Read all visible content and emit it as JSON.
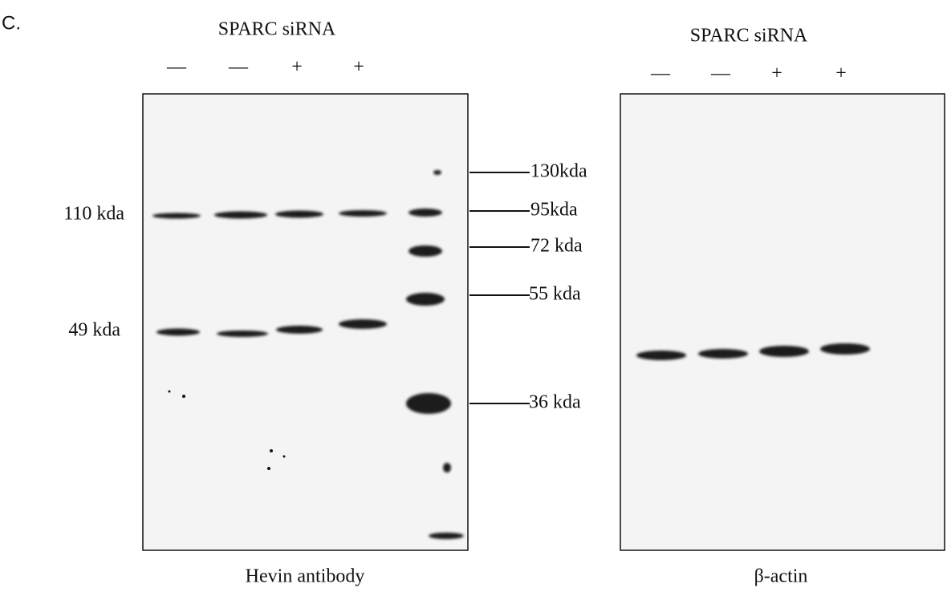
{
  "panel_label": "C.",
  "left_blot": {
    "title": "SPARC siRNA",
    "lanes": [
      "—",
      "—",
      "+",
      "+"
    ],
    "band_labels": [
      "110 kda",
      "49 kda"
    ],
    "marker_labels": [
      "130kda",
      "95kda",
      "72 kda",
      "55 kda",
      "36 kda"
    ],
    "caption": "Hevin antibody"
  },
  "right_blot": {
    "title": "SPARC siRNA",
    "lanes": [
      "—",
      "—",
      "+",
      "+"
    ],
    "caption": "β-actin"
  }
}
